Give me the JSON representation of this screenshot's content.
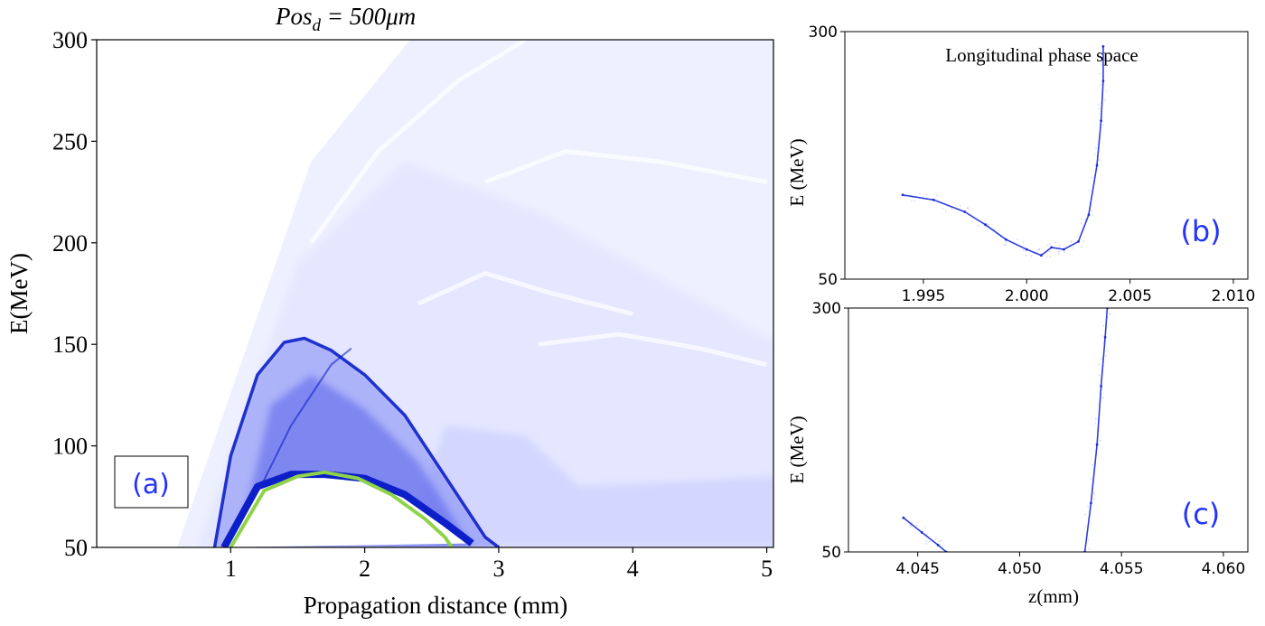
{
  "chart_data": [
    {
      "id": "a",
      "type": "heatmap",
      "title": "Pos_d = 500μm",
      "title_parts": {
        "base": "Pos",
        "sub": "d",
        "rest": " = 500μm"
      },
      "xlabel": "Propagation distance (mm)",
      "ylabel": "E(MeV)",
      "xlim": [
        0,
        5.05
      ],
      "ylim": [
        50,
        300
      ],
      "xticks": [
        1,
        2,
        3,
        4,
        5
      ],
      "yticks": [
        50,
        100,
        150,
        200,
        250,
        300
      ],
      "panel_label": "(a)",
      "colormap": [
        "#ffffff",
        "#eef0ff",
        "#c9ceff",
        "#7f89f5",
        "#2a36e0",
        "#0d1fc8",
        "#8fd34a"
      ],
      "features": [
        {
          "name": "outer",
          "points": [
            [
              0.88,
              50
            ],
            [
              1.0,
              95
            ],
            [
              1.2,
              135
            ],
            [
              1.4,
              151
            ],
            [
              1.55,
              153
            ],
            [
              1.75,
              147
            ],
            [
              2.0,
              135
            ],
            [
              2.3,
              115
            ],
            [
              2.6,
              85
            ],
            [
              2.9,
              55
            ],
            [
              3.0,
              50
            ]
          ]
        },
        {
          "name": "inner",
          "points": [
            [
              0.95,
              50
            ],
            [
              1.2,
              80
            ],
            [
              1.45,
              86
            ],
            [
              1.7,
              86
            ],
            [
              2.0,
              84
            ],
            [
              2.3,
              76
            ],
            [
              2.6,
              62
            ],
            [
              2.8,
              52
            ]
          ]
        },
        {
          "name": "core",
          "points": [
            [
              1.0,
              50
            ],
            [
              1.25,
              78
            ],
            [
              1.5,
              85
            ],
            [
              1.7,
              87
            ],
            [
              1.95,
              84
            ],
            [
              2.2,
              76
            ],
            [
              2.45,
              64
            ],
            [
              2.6,
              55
            ],
            [
              2.65,
              50
            ]
          ]
        }
      ]
    },
    {
      "id": "b",
      "type": "scatter",
      "title": "Longitudinal phase space",
      "xlabel": "",
      "ylabel": "E (MeV)",
      "xlim": [
        1.9912,
        2.0107
      ],
      "ylim": [
        50,
        300
      ],
      "xticks": [
        1.995,
        2.0,
        2.005,
        2.01
      ],
      "xtick_labels": [
        "1.995",
        "2.000",
        "2.005",
        "2.010"
      ],
      "yticks": [
        50,
        300
      ],
      "panel_label": "(b)",
      "series": [
        {
          "points": [
            [
              1.994,
              135
            ],
            [
              1.9955,
              130
            ],
            [
              1.997,
              118
            ],
            [
              1.998,
              105
            ],
            [
              1.999,
              90
            ],
            [
              2.0,
              80
            ],
            [
              2.0007,
              74
            ],
            [
              2.0012,
              82
            ],
            [
              2.0018,
              80
            ],
            [
              2.0025,
              88
            ],
            [
              2.003,
              115
            ],
            [
              2.0034,
              165
            ],
            [
              2.0036,
              210
            ],
            [
              2.0037,
              250
            ],
            [
              2.0037,
              285
            ]
          ]
        }
      ]
    },
    {
      "id": "c",
      "type": "scatter",
      "title": "",
      "xlabel": "z(mm)",
      "ylabel": "E (MeV)",
      "xlim": [
        4.0416,
        4.0612
      ],
      "ylim": [
        50,
        300
      ],
      "xticks": [
        4.045,
        4.05,
        4.055,
        4.06
      ],
      "xtick_labels": [
        "4.045",
        "4.050",
        "4.055",
        "4.060"
      ],
      "yticks": [
        50,
        300
      ],
      "panel_label": "(c)",
      "series": [
        {
          "points": [
            [
              4.0443,
              85
            ],
            [
              4.0452,
              70
            ],
            [
              4.046,
              57
            ],
            [
              4.0464,
              50
            ]
          ]
        },
        {
          "points": [
            [
              4.0532,
              50
            ],
            [
              4.0535,
              100
            ],
            [
              4.0538,
              160
            ],
            [
              4.054,
              220
            ],
            [
              4.0542,
              270
            ],
            [
              4.0543,
              300
            ]
          ]
        }
      ]
    }
  ]
}
